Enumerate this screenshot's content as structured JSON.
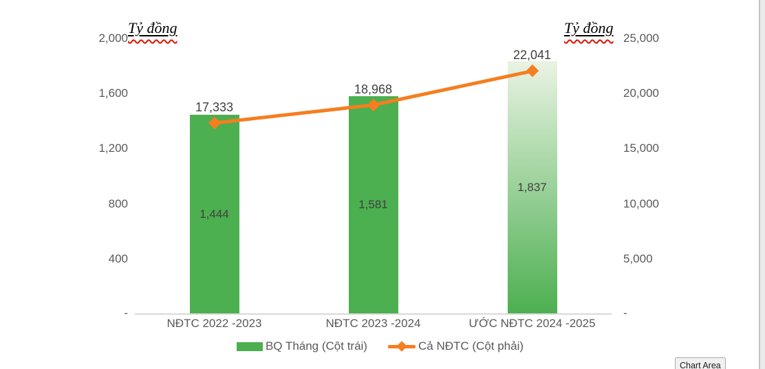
{
  "window": {
    "tooltip": "Chart Area"
  },
  "colors": {
    "bar_green": "#4caf50",
    "bar_gradient_top": "#e9f3e3",
    "line_orange": "#f57e20",
    "axis_text": "#595959",
    "data_label": "#404040",
    "axis_line": "#d9d9d9",
    "squiggle_red": "#e01000"
  },
  "chart_data": {
    "type": "bar",
    "subtype": "combo-bar-line-dual-axis",
    "background": "#ffffff",
    "grid": false,
    "legend_position": "bottom",
    "categories": [
      "NĐTC 2022 -2023",
      "NĐTC 2023 -2024",
      "ƯỚC NĐTC 2024 -2025"
    ],
    "left_axis": {
      "title": "Tỷ đồng",
      "min": 0,
      "max": 2000,
      "ticks": [
        "2,000",
        "1,600",
        "1,200",
        "800",
        "400",
        "-"
      ]
    },
    "right_axis": {
      "title": "Tỷ đồng",
      "min": 0,
      "max": 25000,
      "ticks": [
        "25,000",
        "20,000",
        "15,000",
        "10,000",
        "5,000",
        "-"
      ]
    },
    "series": [
      {
        "name": "BQ Tháng (Cột trái)",
        "type": "bar",
        "axis": "left",
        "values": [
          1444,
          1581,
          1837
        ],
        "labels": [
          "1,444",
          "1,581",
          "1,837"
        ],
        "color": "#4caf50",
        "fills": [
          "solid",
          "solid",
          "gradient"
        ],
        "gradient_top": "#e9f3e3"
      },
      {
        "name": "Cả NĐTC (Cột phải)",
        "type": "line",
        "axis": "right",
        "marker": "diamond",
        "values": [
          17333,
          18968,
          22041
        ],
        "labels": [
          "17,333",
          "18,968",
          "22,041"
        ],
        "color": "#f57e20"
      }
    ]
  }
}
